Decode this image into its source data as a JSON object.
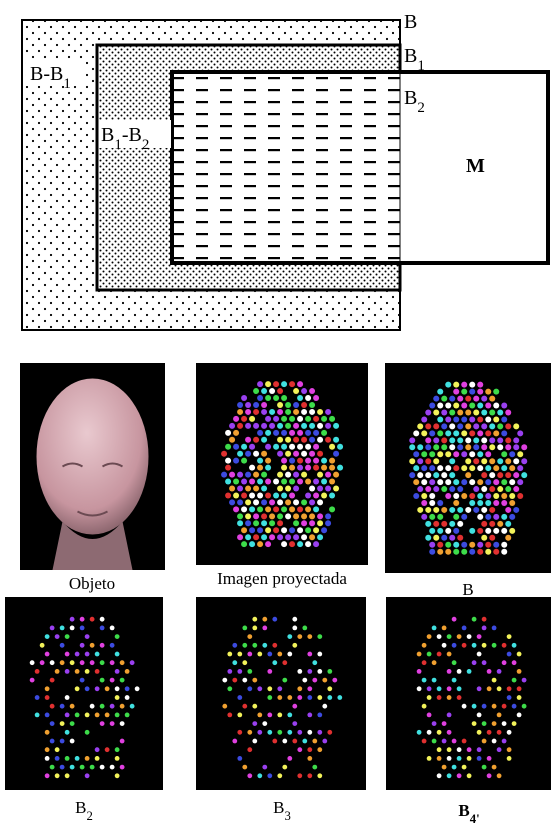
{
  "diagram": {
    "labels": [
      {
        "parts": [
          "B"
        ]
      },
      {
        "parts": [
          "B",
          "1"
        ]
      },
      {
        "parts": [
          "B",
          "2"
        ]
      },
      {
        "parts": [
          "B-B",
          "1"
        ]
      },
      {
        "parts": [
          "B",
          "1",
          "-B",
          "2"
        ]
      },
      {
        "parts": [
          "M"
        ]
      }
    ]
  },
  "figures": [
    {
      "caption": [
        "Objeto"
      ]
    },
    {
      "caption": [
        "Imagen proyectada"
      ]
    },
    {
      "caption": [
        "B"
      ]
    },
    {
      "caption": [
        "B",
        "2"
      ]
    },
    {
      "caption": [
        "B",
        "3"
      ]
    },
    {
      "caption": [
        "B",
        "4'"
      ]
    }
  ]
}
